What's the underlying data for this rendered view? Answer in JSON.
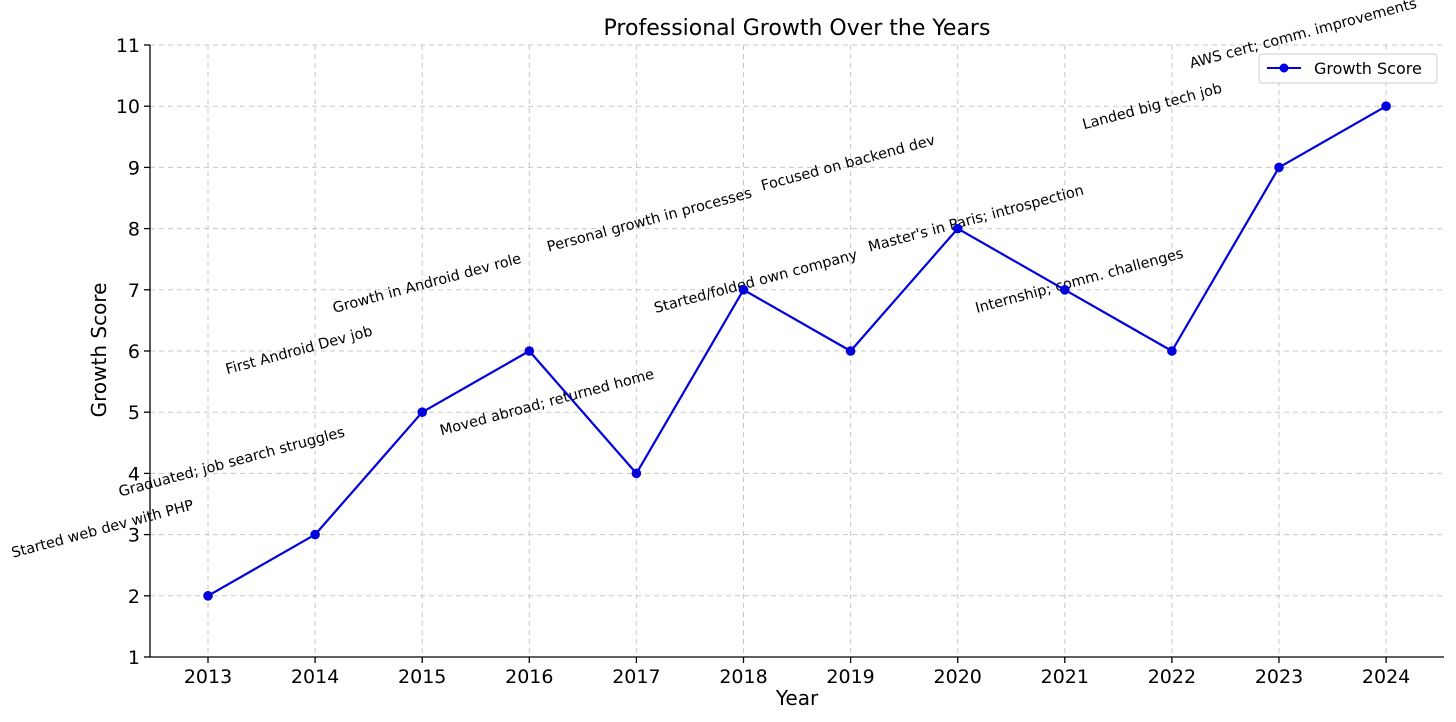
{
  "chart_data": {
    "type": "line",
    "title": "Professional Growth Over the Years",
    "xlabel": "Year",
    "ylabel": "Growth Score",
    "x": [
      2013,
      2014,
      2015,
      2016,
      2017,
      2018,
      2019,
      2020,
      2021,
      2022,
      2023,
      2024
    ],
    "ylim": [
      1,
      11
    ],
    "yticks": [
      1,
      2,
      3,
      4,
      5,
      6,
      7,
      8,
      9,
      10,
      11
    ],
    "grid": true,
    "legend_position": "top-right",
    "series": [
      {
        "name": "Growth Score",
        "color": "#0000dd",
        "marker": "circle",
        "values": [
          2,
          3,
          5,
          6,
          4,
          7,
          6,
          8,
          7,
          6,
          9,
          10
        ]
      }
    ],
    "annotations": [
      {
        "x": 2013,
        "y": 2,
        "text": "Started web dev with PHP"
      },
      {
        "x": 2014,
        "y": 3,
        "text": "Graduated; job search struggles"
      },
      {
        "x": 2015,
        "y": 5,
        "text": "First Android Dev job"
      },
      {
        "x": 2016,
        "y": 6,
        "text": "Growth in Android dev role"
      },
      {
        "x": 2017,
        "y": 4,
        "text": "Moved abroad; returned home"
      },
      {
        "x": 2018,
        "y": 7,
        "text": "Personal growth in processes"
      },
      {
        "x": 2019,
        "y": 6,
        "text": "Started/folded own company"
      },
      {
        "x": 2020,
        "y": 8,
        "text": "Focused on backend dev"
      },
      {
        "x": 2021,
        "y": 7,
        "text": "Master's in Paris; introspection"
      },
      {
        "x": 2022,
        "y": 6,
        "text": "Internship; comm. challenges"
      },
      {
        "x": 2023,
        "y": 9,
        "text": "Landed big tech job"
      },
      {
        "x": 2024,
        "y": 10,
        "text": "AWS cert; comm. improvements"
      }
    ]
  }
}
